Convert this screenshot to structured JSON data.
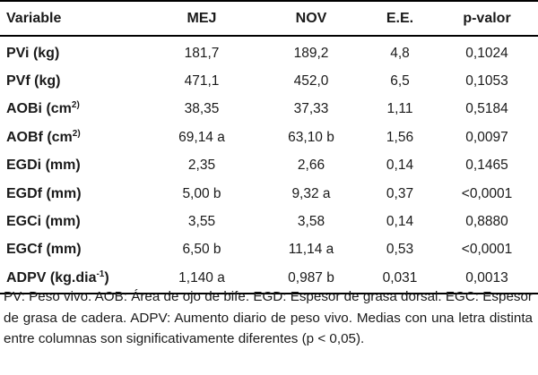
{
  "table": {
    "headers": [
      "Variable",
      "MEJ",
      "NOV",
      "E.E.",
      "p-valor"
    ],
    "rows": [
      {
        "name": "PVi (kg)",
        "sup": "",
        "suffix": "",
        "mej": "181,7",
        "nov": "189,2",
        "ee": "4,8",
        "p": "0,1024"
      },
      {
        "name": "PVf (kg)",
        "sup": "",
        "suffix": "",
        "mej": "471,1",
        "nov": "452,0",
        "ee": "6,5",
        "p": "0,1053"
      },
      {
        "name": "AOBi (cm",
        "sup": "2)",
        "suffix": "",
        "mej": "38,35",
        "nov": "37,33",
        "ee": "1,11",
        "p": "0,5184"
      },
      {
        "name": "AOBf (cm",
        "sup": "2)",
        "suffix": "",
        "mej": "69,14 a",
        "nov": "63,10 b",
        "ee": "1,56",
        "p": "0,0097"
      },
      {
        "name": "EGDi (mm)",
        "sup": "",
        "suffix": "",
        "mej": "2,35",
        "nov": "2,66",
        "ee": "0,14",
        "p": "0,1465"
      },
      {
        "name": "EGDf (mm)",
        "sup": "",
        "suffix": "",
        "mej": "5,00 b",
        "nov": "9,32 a",
        "ee": "0,37",
        "p": "<0,0001"
      },
      {
        "name": "EGCi (mm)",
        "sup": "",
        "suffix": "",
        "mej": "3,55",
        "nov": "3,58",
        "ee": "0,14",
        "p": "0,8880"
      },
      {
        "name": "EGCf (mm)",
        "sup": "",
        "suffix": "",
        "mej": "6,50 b",
        "nov": "11,14 a",
        "ee": "0,53",
        "p": "<0,0001"
      },
      {
        "name": "ADPV (kg.dia",
        "sup": "-1",
        "suffix": ")",
        "mej": "1,140 a",
        "nov": "0,987 b",
        "ee": "0,031",
        "p": "0,0013"
      }
    ]
  },
  "footnote": "PV: Peso vivo. AOB: Área de ojo de bife. EGD: Espesor de grasa dorsal. EGC: Espesor de grasa de cadera. ADPV: Aumento diario de peso vivo. Medias con una letra distinta entre columnas son significativamente diferentes (p < 0,05)."
}
